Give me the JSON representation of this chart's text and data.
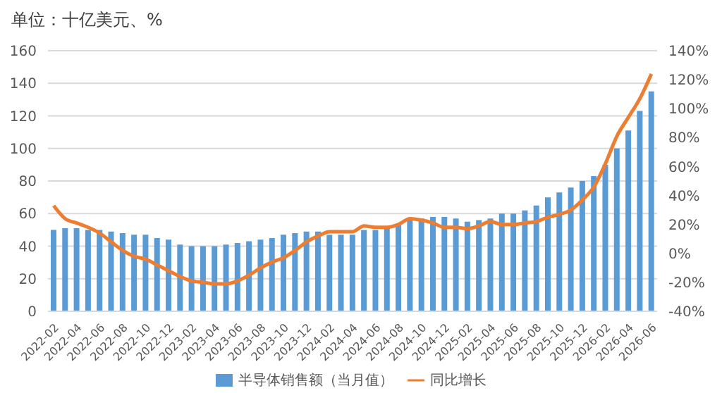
{
  "chart_data": {
    "type": "bar",
    "title": "单位：十亿美元、%",
    "categories": [
      "2022-02",
      null,
      "2022-04",
      null,
      "2022-06",
      null,
      "2022-08",
      null,
      "2022-10",
      null,
      "2022-12",
      null,
      "2023-02",
      null,
      "2023-04",
      null,
      "2023-06",
      null,
      "2023-08",
      null,
      "2023-10",
      null,
      "2023-12",
      null,
      "2024-02",
      null,
      "2024-04",
      null,
      "2024-06",
      null,
      "2024-08",
      null,
      "2024-10",
      null,
      "2024-12",
      null,
      "2025-02",
      null,
      "2025-04",
      null,
      "2025-06",
      null,
      "2025-08",
      null,
      "2025-10",
      null,
      "2025-12",
      null,
      "2026-02",
      null,
      "2026-04",
      null,
      "2026-06"
    ],
    "series": [
      {
        "name": "半导体销售额（当月值）",
        "color": "#5b9bd5",
        "values": [
          50,
          51,
          51,
          50,
          50,
          49,
          48,
          47,
          47,
          45,
          44,
          41,
          40,
          40,
          40,
          41,
          42,
          43,
          44,
          45,
          47,
          48,
          49,
          49,
          47,
          47,
          47,
          50,
          50,
          51,
          53,
          56,
          57,
          58,
          58,
          57,
          55,
          56,
          57,
          60,
          60,
          62,
          65,
          70,
          73,
          76,
          80,
          83,
          90,
          100,
          111,
          123,
          135
        ]
      },
      {
        "name": "同比增长",
        "type": "line",
        "axis": "y2",
        "color": "#ed7d31",
        "values": [
          33,
          24,
          21,
          18,
          14,
          8,
          2,
          -2,
          -4,
          -8,
          -12,
          -16,
          -19,
          -20,
          -21,
          -21,
          -19,
          -15,
          -10,
          -6,
          -3,
          2,
          8,
          12,
          15,
          15,
          15,
          19,
          18,
          18,
          20,
          24,
          23,
          21,
          18,
          18,
          17,
          19,
          22,
          20,
          20,
          21,
          22,
          25,
          27,
          30,
          37,
          46,
          62,
          81,
          94,
          107,
          124
        ]
      }
    ],
    "ylim": [
      0,
      160
    ],
    "yticks": [
      0,
      20,
      40,
      60,
      80,
      100,
      120,
      140,
      160
    ],
    "y2lim": [
      -40,
      140
    ],
    "y2ticks": [
      {
        "value": -40,
        "label": "-40%"
      },
      {
        "value": -20,
        "label": "-20%"
      },
      {
        "value": 0,
        "label": "0%"
      },
      {
        "value": 20,
        "label": "20%"
      },
      {
        "value": 40,
        "label": "40%"
      },
      {
        "value": 60,
        "label": "60%"
      },
      {
        "value": 80,
        "label": "80%"
      },
      {
        "value": 100,
        "label": "100%"
      },
      {
        "value": 120,
        "label": "120%"
      },
      {
        "value": 140,
        "label": "140%"
      }
    ],
    "grid": "y",
    "legend": "bottom"
  }
}
